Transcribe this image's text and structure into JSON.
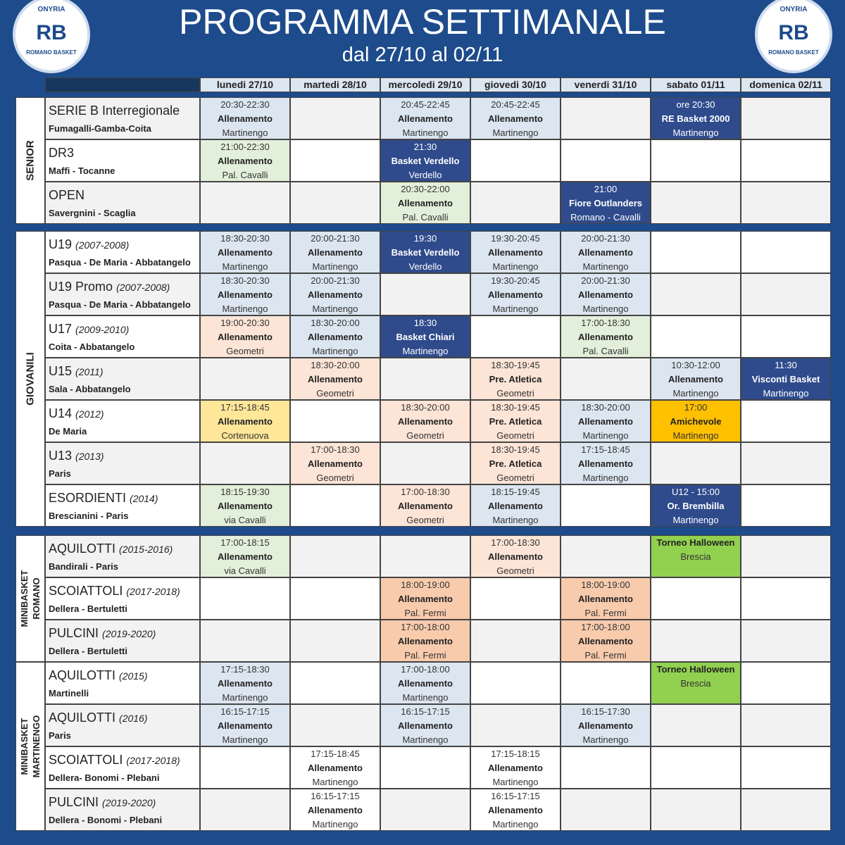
{
  "header": {
    "title": "PROGRAMMA SETTIMANALE",
    "subtitle": "dal 27/10 al 02/11"
  },
  "logo": {
    "top": "ONYRIA",
    "mark": "RB",
    "bottom": "ROMANO BASKET"
  },
  "days": [
    "lunedi 27/10",
    "martedi 28/10",
    "mercoledi 29/10",
    "giovedi 30/10",
    "venerdi 31/10",
    "sabato 01/11",
    "domenica 02/11"
  ],
  "sections": [
    {
      "label": [
        "SENIOR"
      ],
      "rows": [
        {
          "name": "SERIE B Interregionale",
          "coaches": "Fumagalli-Gamba-Coita",
          "cells": [
            {
              "lines": [
                "20:30-22:30",
                "Allenamento",
                "Martinengo"
              ],
              "color": "#dce6f1"
            },
            null,
            {
              "lines": [
                "20:45-22:45",
                "Allenamento",
                "Martinengo"
              ],
              "color": "#dce6f1"
            },
            {
              "lines": [
                "20:45-22:45",
                "Allenamento",
                "Martinengo"
              ],
              "color": "#dce6f1"
            },
            null,
            {
              "lines": [
                "ore 20:30",
                "RE Basket 2000",
                "Martinengo"
              ],
              "color": "#2f4b8c"
            },
            null
          ]
        },
        {
          "name": "DR3",
          "coaches": "Maffi - Tocanne",
          "cells": [
            {
              "lines": [
                "21:00-22:30",
                "Allenamento",
                "Pal. Cavalli"
              ],
              "color": "#e2efda"
            },
            null,
            {
              "lines": [
                "21:30",
                "Basket Verdello",
                "Verdello"
              ],
              "color": "#2f4b8c"
            },
            null,
            null,
            null,
            null
          ]
        },
        {
          "name": "OPEN",
          "coaches": "Savergnini - Scaglia",
          "cells": [
            null,
            null,
            {
              "lines": [
                "20:30-22:00",
                "Allenamento",
                "Pal. Cavalli"
              ],
              "color": "#e2efda"
            },
            null,
            {
              "lines": [
                "21:00",
                "Fiore Outlanders",
                "Romano - Cavalli"
              ],
              "color": "#2f4b8c"
            },
            null,
            null
          ]
        }
      ]
    },
    {
      "label": [
        "GIOVANILI"
      ],
      "rows": [
        {
          "name": "U19",
          "years": "(2007-2008)",
          "coaches": "Pasqua - De Maria - Abbatangelo",
          "cells": [
            {
              "lines": [
                "18:30-20:30",
                "Allenamento",
                "Martinengo"
              ],
              "color": "#dce6f1"
            },
            {
              "lines": [
                "20:00-21:30",
                "Allenamento",
                "Martinengo"
              ],
              "color": "#dce6f1"
            },
            {
              "lines": [
                "19:30",
                "Basket Verdello",
                "Verdello"
              ],
              "color": "#2f4b8c"
            },
            {
              "lines": [
                "19:30-20:45",
                "Allenamento",
                "Martinengo"
              ],
              "color": "#dce6f1"
            },
            {
              "lines": [
                "20:00-21:30",
                "Allenamento",
                "Martinengo"
              ],
              "color": "#dce6f1"
            },
            null,
            null
          ]
        },
        {
          "name": "U19 Promo",
          "years": "(2007-2008)",
          "coaches": "Pasqua - De Maria - Abbatangelo",
          "cells": [
            {
              "lines": [
                "18:30-20:30",
                "Allenamento",
                "Martinengo"
              ],
              "color": "#dce6f1"
            },
            {
              "lines": [
                "20:00-21:30",
                "Allenamento",
                "Martinengo"
              ],
              "color": "#dce6f1"
            },
            null,
            {
              "lines": [
                "19:30-20:45",
                "Allenamento",
                "Martinengo"
              ],
              "color": "#dce6f1"
            },
            {
              "lines": [
                "20:00-21:30",
                "Allenamento",
                "Martinengo"
              ],
              "color": "#dce6f1"
            },
            null,
            null
          ]
        },
        {
          "name": "U17",
          "years": "(2009-2010)",
          "coaches": "Coita - Abbatangelo",
          "cells": [
            {
              "lines": [
                "19:00-20:30",
                "Allenamento",
                "Geometri"
              ],
              "color": "#fce4d6"
            },
            {
              "lines": [
                "18:30-20:00",
                "Allenamento",
                "Martinengo"
              ],
              "color": "#dce6f1"
            },
            {
              "lines": [
                "18:30",
                "Basket Chiari",
                "Martinengo"
              ],
              "color": "#2f4b8c"
            },
            null,
            {
              "lines": [
                "17:00-18:30",
                "Allenamento",
                "Pal. Cavalli"
              ],
              "color": "#e2efda"
            },
            null,
            null
          ]
        },
        {
          "name": "U15",
          "years": "(2011)",
          "coaches": "Sala - Abbatangelo",
          "cells": [
            null,
            {
              "lines": [
                "18:30-20:00",
                "Allenamento",
                "Geometri"
              ],
              "color": "#fce4d6"
            },
            null,
            {
              "lines": [
                "18:30-19:45",
                "Pre. Atletica",
                "Geometri"
              ],
              "color": "#fce4d6"
            },
            null,
            {
              "lines": [
                "10:30-12:00",
                "Allenamento",
                "Martinengo"
              ],
              "color": "#dce6f1"
            },
            {
              "lines": [
                "11:30",
                "Visconti Basket",
                "Martinengo"
              ],
              "color": "#2f4b8c"
            }
          ]
        },
        {
          "name": "U14",
          "years": "(2012)",
          "coaches": "De Maria",
          "cells": [
            {
              "lines": [
                "17:15-18:45",
                "Allenamento",
                "Cortenuova"
              ],
              "color": "#ffe699"
            },
            null,
            {
              "lines": [
                "18:30-20:00",
                "Allenamento",
                "Geometri"
              ],
              "color": "#fce4d6"
            },
            {
              "lines": [
                "18:30-19:45",
                "Pre. Atletica",
                "Geometri"
              ],
              "color": "#fce4d6"
            },
            {
              "lines": [
                "18:30-20:00",
                "Allenamento",
                "Martinengo"
              ],
              "color": "#dce6f1"
            },
            {
              "lines": [
                "17:00",
                "Amichevole",
                "Martinengo"
              ],
              "color": "#ffc000"
            },
            null
          ]
        },
        {
          "name": "U13",
          "years": "(2013)",
          "coaches": "Paris",
          "cells": [
            null,
            {
              "lines": [
                "17:00-18:30",
                "Allenamento",
                "Geometri"
              ],
              "color": "#fce4d6"
            },
            null,
            {
              "lines": [
                "18:30-19:45",
                "Pre. Atletica",
                "Geometri"
              ],
              "color": "#fce4d6"
            },
            {
              "lines": [
                "17:15-18:45",
                "Allenamento",
                "Martinengo"
              ],
              "color": "#dce6f1"
            },
            null,
            null
          ]
        },
        {
          "name": "ESORDIENTI",
          "years": "(2014)",
          "coaches": "Brescianini - Paris",
          "cells": [
            {
              "lines": [
                "18:15-19:30",
                "Allenamento",
                "via Cavalli"
              ],
              "color": "#e2efda"
            },
            null,
            {
              "lines": [
                "17:00-18:30",
                "Allenamento",
                "Geometri"
              ],
              "color": "#fce4d6"
            },
            {
              "lines": [
                "18:15-19:45",
                "Allenamento",
                "Martinengo"
              ],
              "color": "#dce6f1"
            },
            null,
            {
              "lines": [
                "U12 - 15:00",
                "Or. Brembilla",
                "Martinengo"
              ],
              "color": "#2f4b8c"
            },
            null
          ]
        }
      ]
    },
    {
      "label": [
        "MINIBASKET",
        "ROMANO"
      ],
      "rows": [
        {
          "name": "AQUILOTTI",
          "years": "(2015-2016)",
          "coaches": "Bandirali - Paris",
          "cells": [
            {
              "lines": [
                "17:00-18:15",
                "Allenamento",
                "via Cavalli"
              ],
              "color": "#e2efda"
            },
            null,
            null,
            {
              "lines": [
                "17:00-18:30",
                "Allenamento",
                "Geometri"
              ],
              "color": "#fce4d6"
            },
            null,
            {
              "lines": [
                "Torneo Halloween",
                "Brescia"
              ],
              "color": "#92d050"
            },
            null
          ]
        },
        {
          "name": "SCOIATTOLI",
          "years": "(2017-2018)",
          "coaches": "Dellera - Bertuletti",
          "cells": [
            null,
            null,
            {
              "lines": [
                "18:00-19:00",
                "Allenamento",
                "Pal. Fermi"
              ],
              "color": "#f8cbad"
            },
            null,
            {
              "lines": [
                "18:00-19:00",
                "Allenamento",
                "Pal. Fermi"
              ],
              "color": "#f8cbad"
            },
            null,
            null
          ]
        },
        {
          "name": "PULCINI",
          "years": "(2019-2020)",
          "coaches": "Dellera - Bertuletti",
          "cells": [
            null,
            null,
            {
              "lines": [
                "17:00-18:00",
                "Allenamento",
                "Pal. Fermi"
              ],
              "color": "#f8cbad"
            },
            null,
            {
              "lines": [
                "17:00-18:00",
                "Allenamento",
                "Pal. Fermi"
              ],
              "color": "#f8cbad"
            },
            null,
            null
          ]
        }
      ]
    },
    {
      "label": [
        "MINIBASKET",
        "MARTINENGO"
      ],
      "rows": [
        {
          "name": "AQUILOTTI",
          "years": "(2015)",
          "coaches": "Martinelli",
          "cells": [
            {
              "lines": [
                "17:15-18:30",
                "Allenamento",
                "Martinengo"
              ],
              "color": "#dce6f1"
            },
            null,
            {
              "lines": [
                "17:00-18:00",
                "Allenamento",
                "Martinengo"
              ],
              "color": "#dce6f1"
            },
            null,
            null,
            {
              "lines": [
                "Torneo Halloween",
                "Brescia"
              ],
              "color": "#92d050"
            },
            null
          ]
        },
        {
          "name": "AQUILOTTI",
          "years": "(2016)",
          "coaches": "Paris",
          "cells": [
            {
              "lines": [
                "16:15-17:15",
                "Allenamento",
                "Martinengo"
              ],
              "color": "#dce6f1"
            },
            null,
            {
              "lines": [
                "16:15-17:15",
                "Allenamento",
                "Martinengo"
              ],
              "color": "#dce6f1"
            },
            null,
            {
              "lines": [
                "16:15-17:30",
                "Allenamento",
                "Martinengo"
              ],
              "color": "#dce6f1"
            },
            null,
            null
          ]
        },
        {
          "name": "SCOIATTOLI",
          "years": "(2017-2018)",
          "coaches": "Dellera- Bonomi - Plebani",
          "cells": [
            null,
            {
              "lines": [
                "17:15-18:45",
                "Allenamento",
                "Martinengo"
              ],
              "color": "#ffffff"
            },
            null,
            {
              "lines": [
                "17:15-18:15",
                "Allenamento",
                "Martinengo"
              ],
              "color": "#ffffff"
            },
            null,
            null,
            null
          ]
        },
        {
          "name": "PULCINI",
          "years": "(2019-2020)",
          "coaches": "Dellera - Bonomi - Plebani",
          "cells": [
            null,
            {
              "lines": [
                "16:15-17:15",
                "Allenamento",
                "Martinengo"
              ],
              "color": "#ffffff"
            },
            null,
            {
              "lines": [
                "16:15-17:15",
                "Allenamento",
                "Martinengo"
              ],
              "color": "#ffffff"
            },
            null,
            null,
            null
          ]
        }
      ]
    }
  ]
}
